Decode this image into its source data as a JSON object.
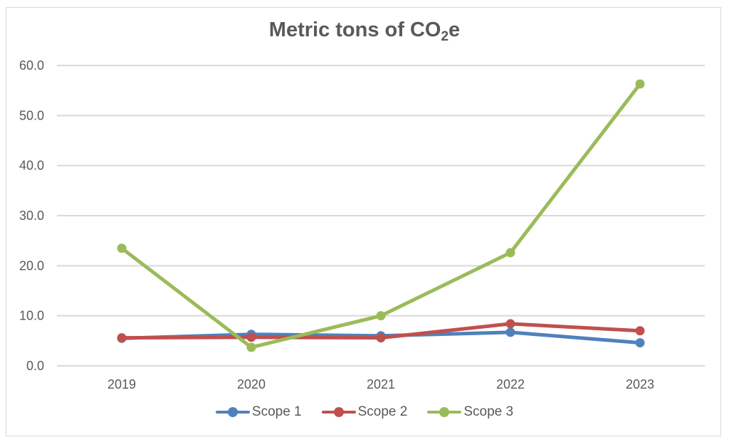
{
  "chart_data": {
    "type": "line",
    "title_main": "Metric tons of CO",
    "title_sub": "2",
    "title_tail": "e",
    "title": "Metric tons of CO2e",
    "xlabel": "",
    "ylabel": "",
    "categories": [
      "2019",
      "2020",
      "2021",
      "2022",
      "2023"
    ],
    "ylim": [
      0,
      60
    ],
    "yticks": [
      "0.0",
      "10.0",
      "20.0",
      "30.0",
      "40.0",
      "50.0",
      "60.0"
    ],
    "grid": true,
    "legend_position": "bottom",
    "series": [
      {
        "name": "Scope 1",
        "color": "#4F81BD",
        "values": [
          5.5,
          6.3,
          6.0,
          6.7,
          4.6
        ]
      },
      {
        "name": "Scope 2",
        "color": "#C0504D",
        "values": [
          5.6,
          5.7,
          5.6,
          8.4,
          7.0
        ]
      },
      {
        "name": "Scope 3",
        "color": "#9BBB59",
        "values": [
          23.5,
          3.7,
          10.0,
          22.6,
          56.3
        ]
      }
    ]
  }
}
